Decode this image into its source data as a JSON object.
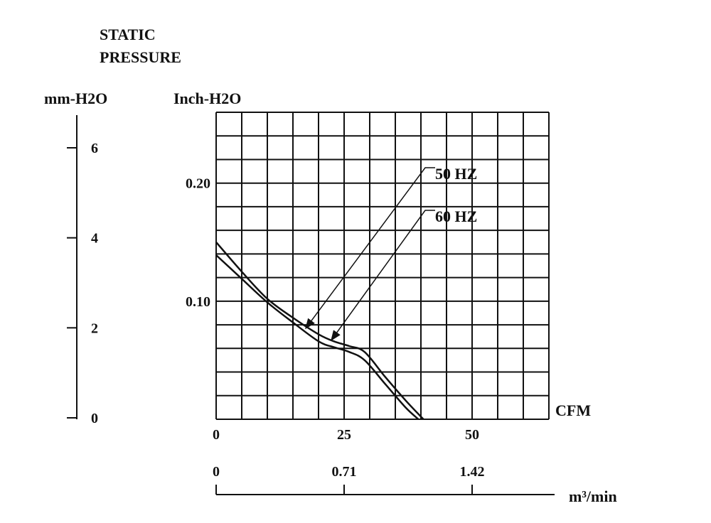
{
  "chart_data": {
    "type": "line",
    "title_lines": [
      "STATIC",
      "PRESSURE"
    ],
    "ylabel_left": "mm-H2O",
    "ylabel_inch": "Inch-H2O",
    "xlabel_cfm": "CFM",
    "xlabel_m3": "m³/min",
    "xlim": [
      0,
      65
    ],
    "ylim": [
      0,
      0.26
    ],
    "grid": true,
    "x_ticks": [
      {
        "value": 0,
        "label": "0"
      },
      {
        "value": 25,
        "label": "25"
      },
      {
        "value": 50,
        "label": "50"
      }
    ],
    "y_ticks_inch": [
      {
        "value": 0.1,
        "label": "0.10"
      },
      {
        "value": 0.2,
        "label": "0.20"
      }
    ],
    "y_ticks_mm": [
      {
        "value": 0,
        "label": "0"
      },
      {
        "value": 2,
        "label": "2"
      },
      {
        "value": 4,
        "label": "4"
      },
      {
        "value": 6,
        "label": "6"
      }
    ],
    "x_ticks_m3": [
      {
        "value": 0,
        "label": "0"
      },
      {
        "value": 0.71,
        "label": "0.71"
      },
      {
        "value": 1.42,
        "label": "1.42"
      }
    ],
    "series": [
      {
        "name": "50 HZ",
        "x": [
          0,
          5,
          10,
          15,
          20,
          23,
          26,
          29,
          33,
          37,
          39.5
        ],
        "y": [
          0.139,
          0.119,
          0.099,
          0.082,
          0.066,
          0.061,
          0.057,
          0.05,
          0.03,
          0.01,
          0.0
        ]
      },
      {
        "name": "60 HZ",
        "x": [
          0,
          5,
          10,
          15,
          20,
          23,
          26,
          29,
          33,
          37,
          40.5
        ],
        "y": [
          0.15,
          0.125,
          0.102,
          0.086,
          0.072,
          0.066,
          0.062,
          0.057,
          0.036,
          0.016,
          0.0
        ]
      }
    ],
    "annotations": [
      {
        "text": "50 HZ",
        "series": "50 HZ",
        "point_x": 17.5,
        "point_y": 0.077
      },
      {
        "text": "60 HZ",
        "series": "60 HZ",
        "point_x": 22.5,
        "point_y": 0.067
      }
    ]
  }
}
